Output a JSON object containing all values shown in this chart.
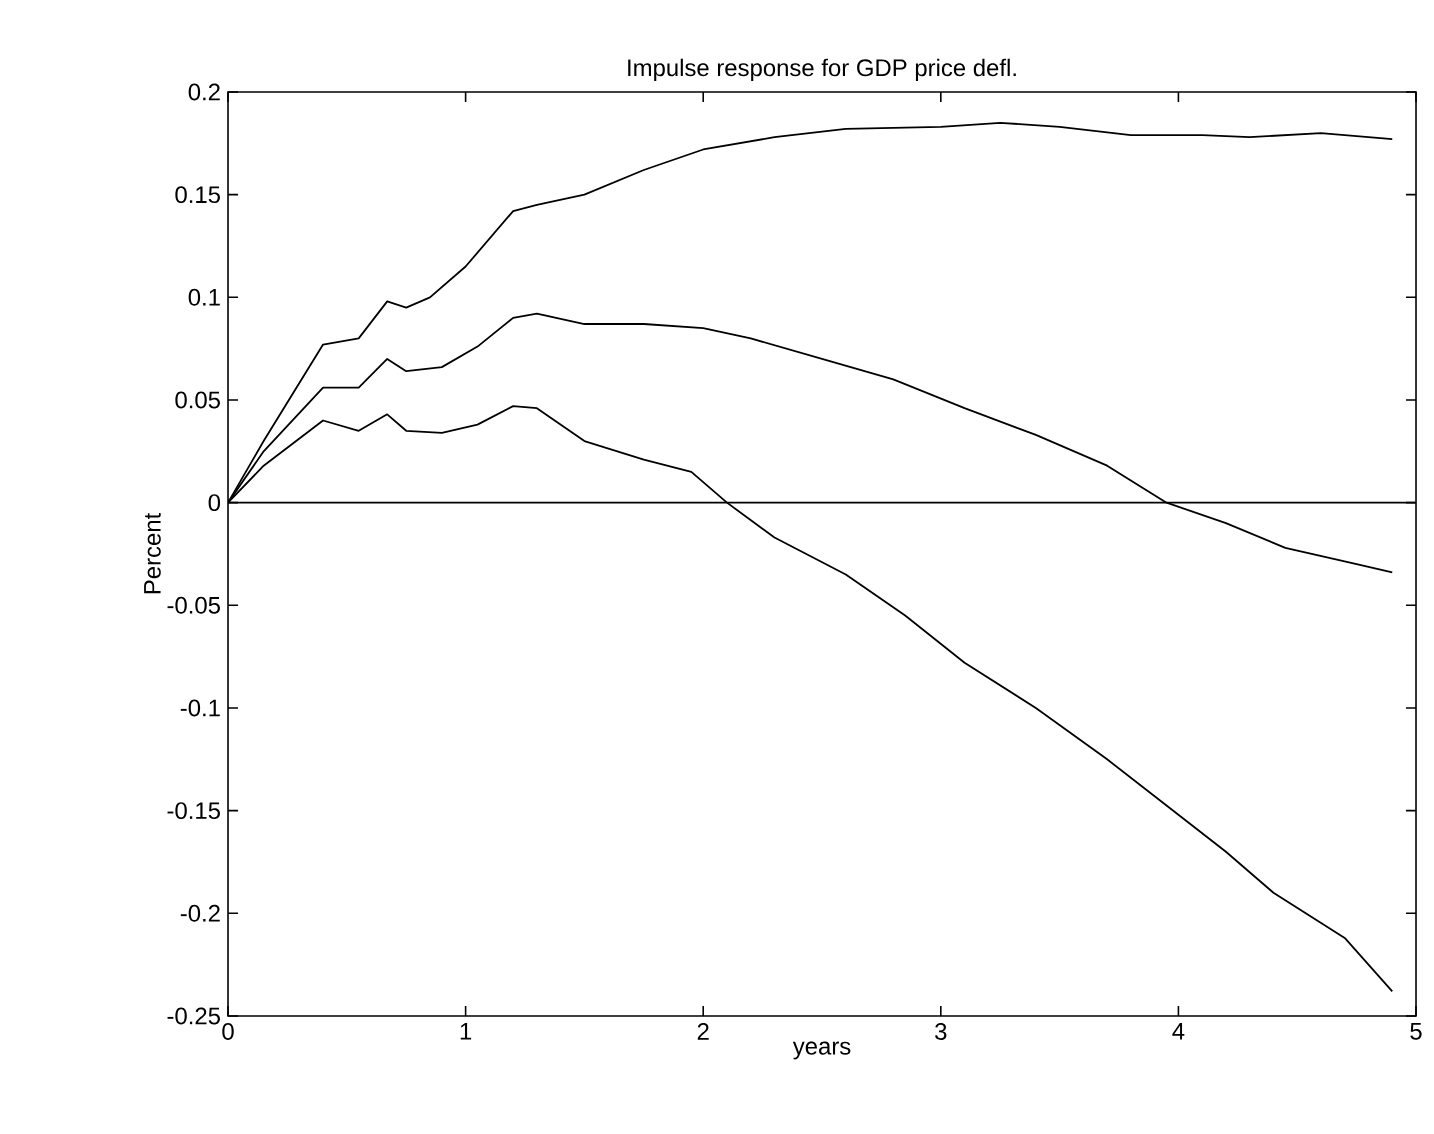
{
  "chart_data": {
    "type": "line",
    "title": "Impulse response for GDP price defl.",
    "xlabel": "years",
    "ylabel": "Percent",
    "xlim": [
      0,
      5
    ],
    "xticks": [
      0,
      1,
      2,
      3,
      4,
      5
    ],
    "ylim": [
      -0.25,
      0.2
    ],
    "yticks": [
      -0.25,
      -0.2,
      -0.15,
      -0.1,
      -0.05,
      0,
      0.05,
      0.1,
      0.15,
      0.2
    ],
    "grid": false,
    "marker": "none",
    "line_style": "solid",
    "ref_lines": [
      {
        "axis": "y",
        "value": 0,
        "color": "#000000"
      }
    ],
    "series": [
      {
        "color": "#000000",
        "x": [
          0,
          0.15,
          0.4,
          0.55,
          0.67,
          0.75,
          0.85,
          1,
          1.2,
          1.3,
          1.5,
          1.75,
          2,
          2.3,
          2.6,
          3,
          3.25,
          3.5,
          3.8,
          4.1,
          4.3,
          4.6,
          4.9
        ],
        "values": [
          0,
          0.03,
          0.077,
          0.08,
          0.098,
          0.095,
          0.1,
          0.115,
          0.142,
          0.145,
          0.15,
          0.162,
          0.172,
          0.178,
          0.182,
          0.183,
          0.185,
          0.183,
          0.179,
          0.179,
          0.178,
          0.18,
          0.177
        ]
      },
      {
        "color": "#000000",
        "x": [
          0,
          0.15,
          0.4,
          0.55,
          0.67,
          0.75,
          0.9,
          1.05,
          1.2,
          1.3,
          1.5,
          1.75,
          2,
          2.2,
          2.5,
          2.8,
          3.1,
          3.4,
          3.7,
          3.95,
          4.2,
          4.45,
          4.75,
          4.9
        ],
        "values": [
          0,
          0.025,
          0.056,
          0.056,
          0.07,
          0.064,
          0.066,
          0.076,
          0.09,
          0.092,
          0.087,
          0.087,
          0.085,
          0.08,
          0.07,
          0.06,
          0.046,
          0.033,
          0.018,
          0,
          -0.01,
          -0.022,
          -0.03,
          -0.034
        ]
      },
      {
        "color": "#000000",
        "x": [
          0,
          0.15,
          0.4,
          0.55,
          0.67,
          0.75,
          0.9,
          1.05,
          1.2,
          1.3,
          1.5,
          1.75,
          1.95,
          2.1,
          2.3,
          2.6,
          2.85,
          3.1,
          3.4,
          3.7,
          4,
          4.2,
          4.4,
          4.7,
          4.9
        ],
        "values": [
          0,
          0.018,
          0.04,
          0.035,
          0.043,
          0.035,
          0.034,
          0.038,
          0.047,
          0.046,
          0.03,
          0.021,
          0.015,
          0,
          -0.017,
          -0.035,
          -0.055,
          -0.078,
          -0.1,
          -0.125,
          -0.152,
          -0.17,
          -0.19,
          -0.212,
          -0.238
        ]
      }
    ]
  }
}
